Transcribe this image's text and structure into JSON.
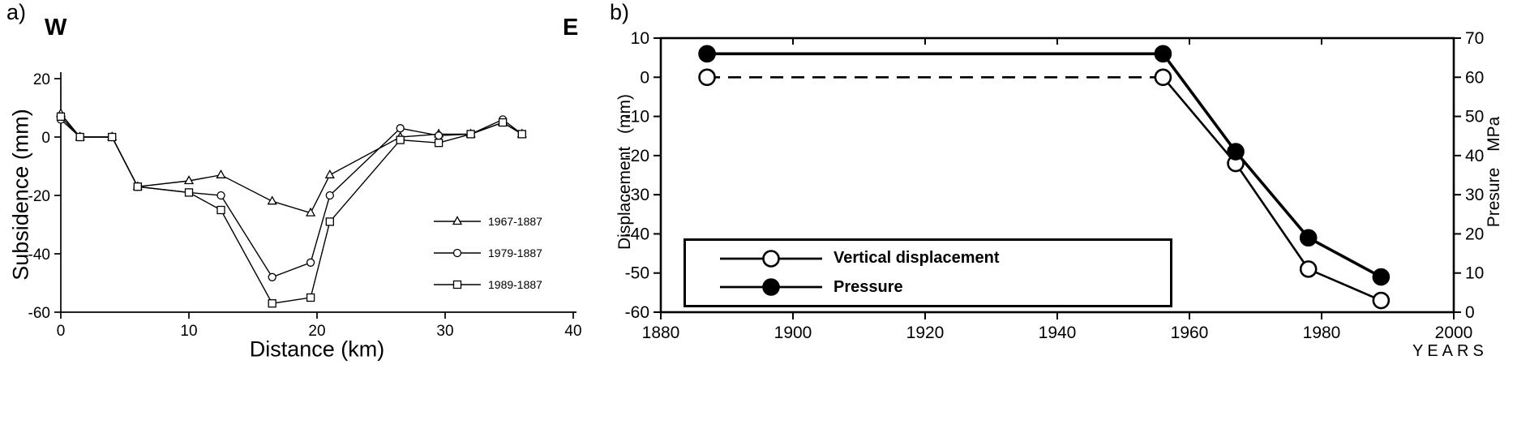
{
  "panel_a": {
    "label": "a)",
    "west": "W",
    "east": "E",
    "chart_data": {
      "type": "line",
      "title": "",
      "xlabel": "Distance (km)",
      "ylabel": "Subsidence (mm)",
      "xlim": [
        0,
        40
      ],
      "ylim": [
        -60,
        20
      ],
      "xticks": [
        0,
        10,
        20,
        30,
        40
      ],
      "yticks": [
        20,
        0,
        -20,
        -40,
        -60
      ],
      "grid": false,
      "legend_position": "lower right",
      "series": [
        {
          "name": "1967-1887",
          "marker": "triangle",
          "x": [
            0,
            1.5,
            4,
            6,
            10,
            12.5,
            16.5,
            19.5,
            21,
            26.5,
            29.5,
            32,
            34.5,
            36
          ],
          "y": [
            8,
            0,
            0,
            -17,
            -15,
            -13,
            -22,
            -26,
            -13,
            0,
            1,
            1,
            5,
            1
          ]
        },
        {
          "name": "1979-1887",
          "marker": "circle",
          "x": [
            0,
            1.5,
            4,
            6,
            10,
            12.5,
            16.5,
            19.5,
            21,
            26.5,
            29.5,
            32,
            34.5,
            36
          ],
          "y": [
            6,
            0,
            0,
            -17,
            -19,
            -20,
            -48,
            -43,
            -20,
            3,
            0.5,
            1,
            6,
            1
          ]
        },
        {
          "name": "1989-1887",
          "marker": "square",
          "x": [
            0,
            1.5,
            4,
            6,
            10,
            12.5,
            16.5,
            19.5,
            21,
            26.5,
            29.5,
            32,
            34.5,
            36
          ],
          "y": [
            7,
            0,
            0,
            -17,
            -19,
            -25,
            -57,
            -55,
            -29,
            -1,
            -2,
            1,
            5,
            1
          ]
        }
      ]
    }
  },
  "panel_b": {
    "label": "b)",
    "chart_data": {
      "type": "line",
      "title": "",
      "xlabel": "YEARS",
      "ylabel_left": "Displacement (mm)",
      "ylabel_right": "Presure MPa",
      "xlim": [
        1880,
        2000
      ],
      "ylim_left": [
        -60,
        10
      ],
      "ylim_right": [
        0,
        70
      ],
      "xticks": [
        1880,
        1900,
        1920,
        1940,
        1960,
        1980,
        2000
      ],
      "yticks_left": [
        10,
        0,
        -10,
        -20,
        -30,
        -40,
        -50,
        -60
      ],
      "yticks_right": [
        70,
        60,
        50,
        40,
        30,
        20,
        10,
        0
      ],
      "grid": false,
      "legend_position": "lower left",
      "series": [
        {
          "name": "Vertical displacement",
          "marker": "open-circle",
          "axis": "left",
          "linestyle": "dashed-then-solid",
          "dash_until_index": 1,
          "x": [
            1887,
            1956,
            1967,
            1978,
            1989
          ],
          "y": [
            0,
            0,
            -22,
            -49,
            -57
          ]
        },
        {
          "name": "Pressure",
          "marker": "filled-circle",
          "axis": "right",
          "linestyle": "solid",
          "x": [
            1887,
            1956,
            1967,
            1978,
            1989
          ],
          "y": [
            66,
            66,
            41,
            19,
            9
          ]
        }
      ]
    }
  }
}
